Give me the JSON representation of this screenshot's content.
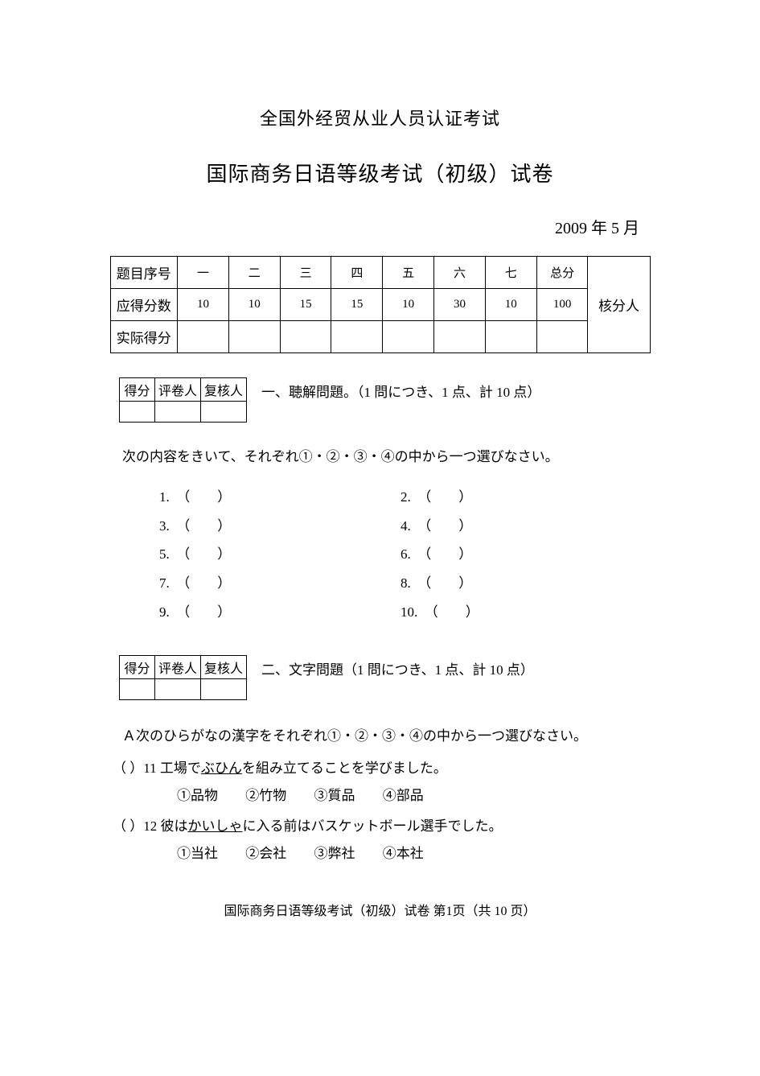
{
  "header": {
    "title1": "全国外经贸从业人员认证考试",
    "title2": "国际商务日语等级考试（初级）试卷",
    "date": "2009 年 5 月"
  },
  "score_table": {
    "row_labels": [
      "题目序号",
      "应得分数",
      "实际得分"
    ],
    "columns": [
      "一",
      "二",
      "三",
      "四",
      "五",
      "六",
      "七",
      "总分"
    ],
    "points": [
      "10",
      "10",
      "15",
      "15",
      "10",
      "30",
      "10",
      "100"
    ],
    "reviewer_label": "核分人"
  },
  "mini_table": {
    "headers": [
      "得分",
      "评卷人",
      "复核人"
    ]
  },
  "section1": {
    "title": "一、聴解問題。（1 問につき、1 点、計 10 点）",
    "instruction": "次の内容をきいて、それぞれ①・②・③・④の中から一つ選びなさい。",
    "items_left": [
      "1.  （        ）",
      "3.  （        ）",
      "5.  （        ）",
      "7.  （        ）",
      "9.  （        ）"
    ],
    "items_right": [
      "2.  （        ）",
      "4.  （        ）",
      "6.  （        ）",
      "8.  （        ）",
      "10.  （        ）"
    ]
  },
  "section2": {
    "title": "二、文字問題（1 問につき、1 点、計 10 点）",
    "sub_instruction": "Ａ次のひらがなの漢字をそれぞれ①・②・③・④の中から一つ選びなさい。",
    "q11": {
      "prefix": "（        ）11 工場で",
      "underlined": "ぶひん",
      "suffix": "を組み立てることを学びました。",
      "choices": [
        "①品物",
        "②竹物",
        "③質品",
        "④部品"
      ]
    },
    "q12": {
      "prefix": "（        ）12 彼は",
      "underlined": "かいしゃ",
      "suffix": "に入る前はバスケットボール選手でした。",
      "choices": [
        "①当社",
        "②会社",
        "③弊社",
        "④本社"
      ]
    }
  },
  "footer": "国际商务日语等级考试（初级）试卷  第1页（共 10 页）"
}
